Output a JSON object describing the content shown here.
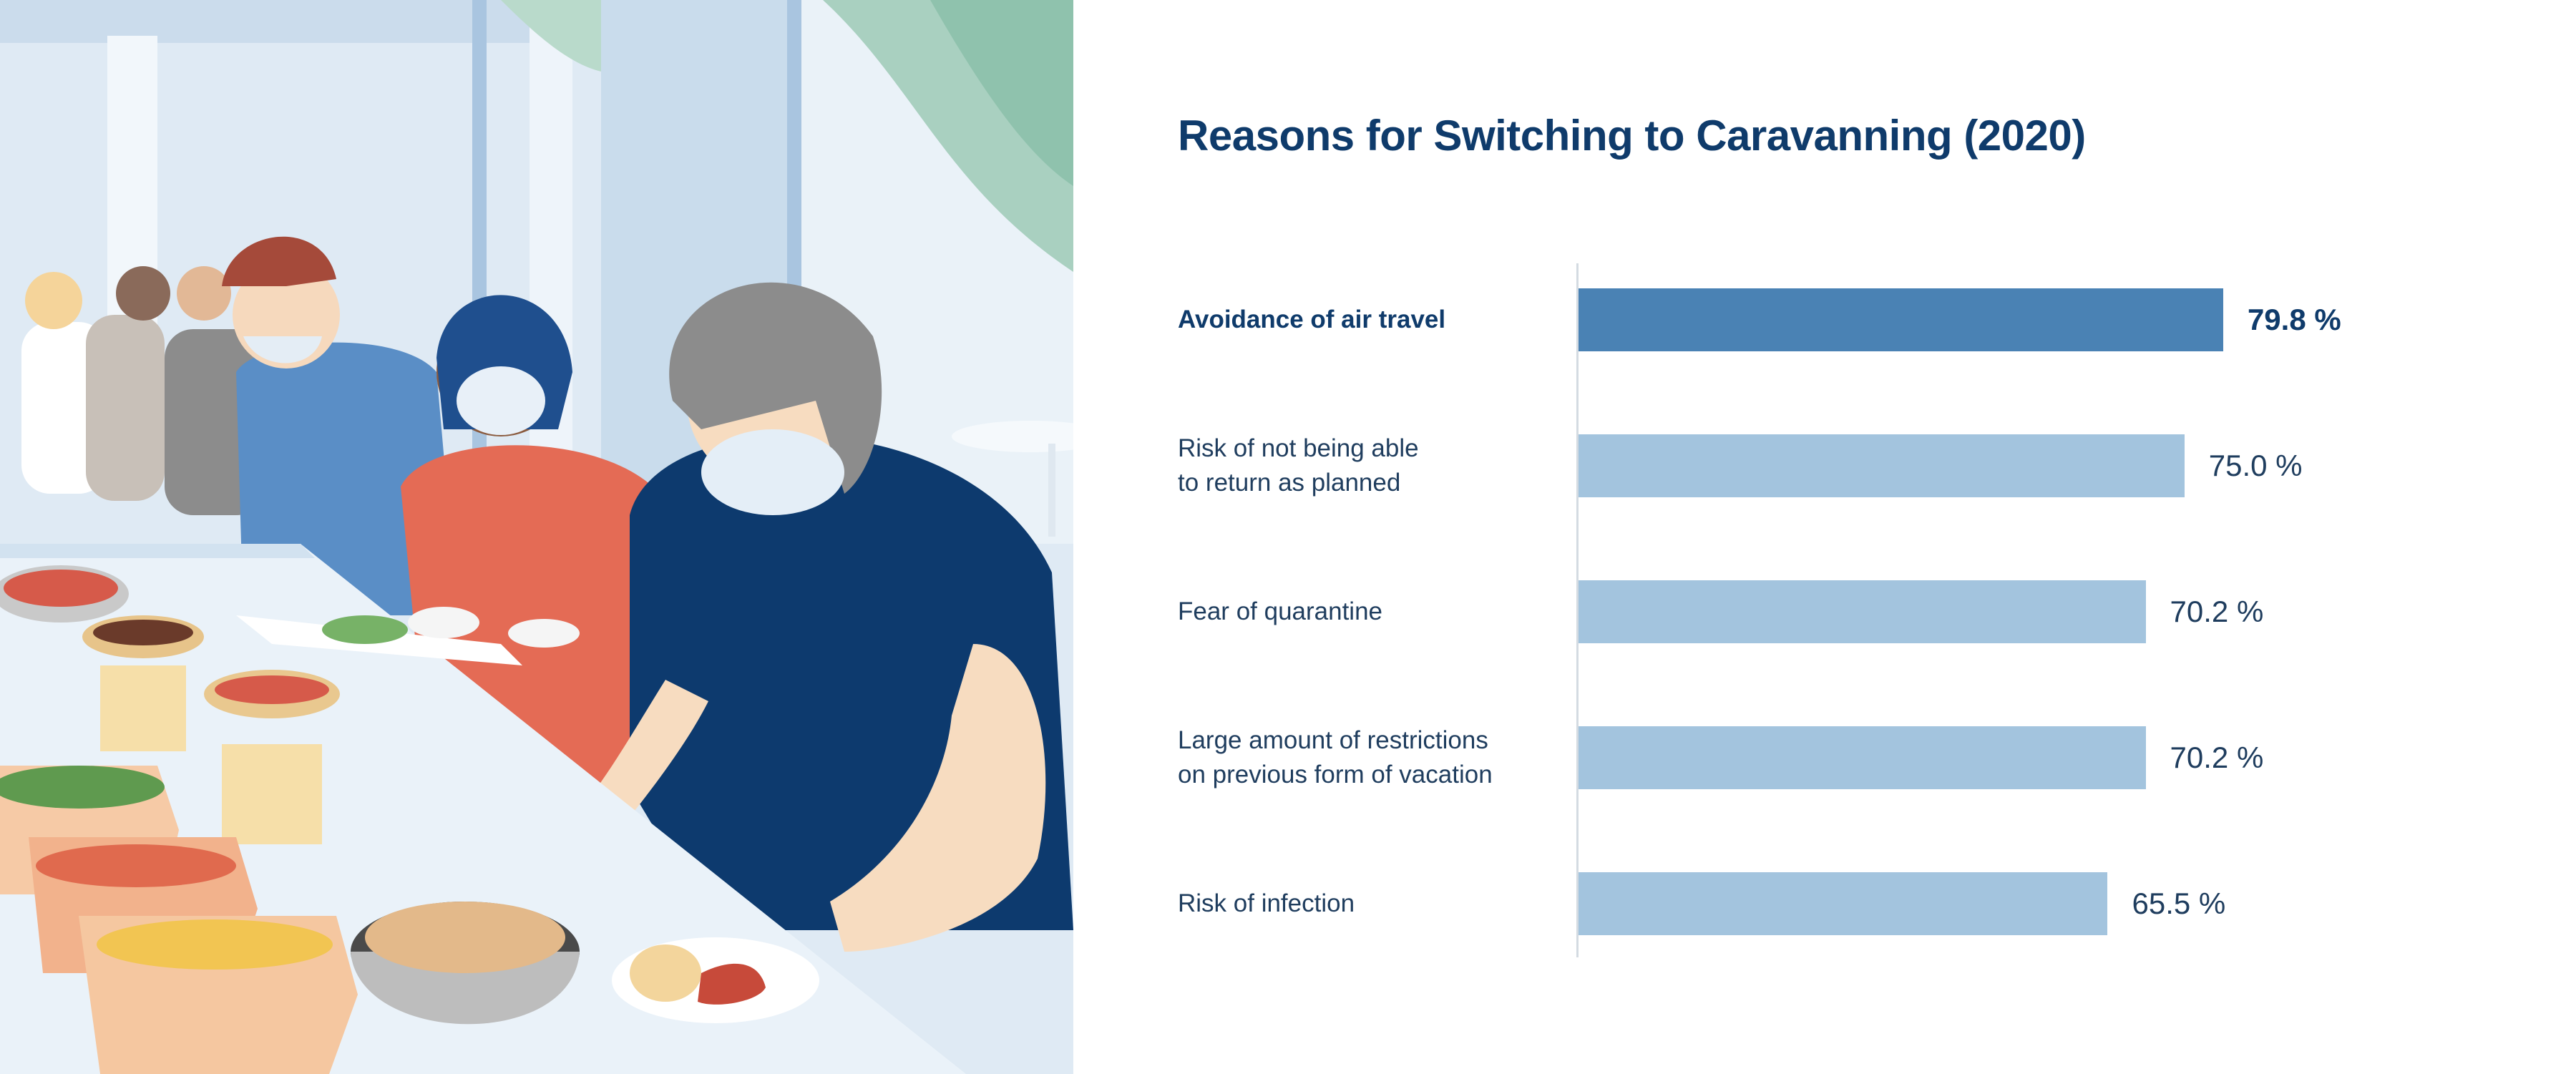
{
  "colors": {
    "highlight_bar": "#4a82b4",
    "bar": "#a3c4de",
    "title": "#0f3b6b",
    "text": "#1f3d5e"
  },
  "chart_data": {
    "type": "bar",
    "orientation": "horizontal",
    "title": "Reasons for Switching to Caravanning (2020)",
    "unit": "%",
    "categories": [
      "Avoidance of air travel",
      "Risk of not being able\nto return as planned",
      "Fear of quarantine",
      "Large amount of restrictions\non previous form of vacation",
      "Risk of infection"
    ],
    "values": [
      79.8,
      75.0,
      70.2,
      70.2,
      65.5
    ],
    "value_labels": [
      "79.8 %",
      "75.0 %",
      "70.2 %",
      "70.2 %",
      "65.5 %"
    ],
    "highlight_index": 0,
    "xlim": [
      0,
      100
    ],
    "grid": false,
    "legend": "none"
  }
}
